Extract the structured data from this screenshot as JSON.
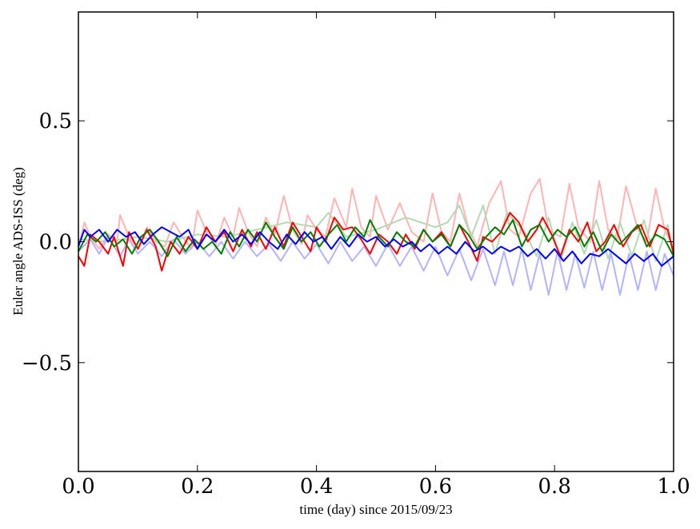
{
  "chart_data": {
    "type": "line",
    "title": "",
    "xlabel": "time (day) since 2015/09/23",
    "ylabel": "Euler angle ADS-ISS (deg)",
    "xlim": [
      0.0,
      1.0
    ],
    "ylim": [
      -0.95,
      0.95
    ],
    "grid": false,
    "legend": "none",
    "x_ticks": [
      0.0,
      0.2,
      0.4,
      0.6,
      0.8,
      1.0
    ],
    "x_tick_labels": [
      "0.0",
      "0.2",
      "0.4",
      "0.6",
      "0.8",
      "1.0"
    ],
    "y_ticks": [
      -0.5,
      0.0,
      0.5
    ],
    "y_tick_labels": [
      "−0.5",
      "0.0",
      "0.5"
    ],
    "series": [
      {
        "color": "#ffb3b3",
        "x": [
          0.0,
          0.01,
          0.02,
          0.035,
          0.05,
          0.065,
          0.07,
          0.085,
          0.1,
          0.115,
          0.13,
          0.145,
          0.16,
          0.175,
          0.19,
          0.2,
          0.215,
          0.23,
          0.245,
          0.26,
          0.27,
          0.285,
          0.3,
          0.315,
          0.33,
          0.345,
          0.36,
          0.375,
          0.385,
          0.4,
          0.415,
          0.43,
          0.45,
          0.46,
          0.475,
          0.49,
          0.5,
          0.52,
          0.54,
          0.56,
          0.58,
          0.595,
          0.61,
          0.625,
          0.64,
          0.655,
          0.67,
          0.69,
          0.71,
          0.725,
          0.74,
          0.76,
          0.775,
          0.79,
          0.81,
          0.825,
          0.84,
          0.86,
          0.875,
          0.89,
          0.905,
          0.92,
          0.94,
          0.955,
          0.97,
          0.985,
          1.0
        ],
        "values": [
          -0.02,
          0.08,
          0.02,
          -0.03,
          0.03,
          0.0,
          0.11,
          0.02,
          -0.03,
          0.06,
          0.0,
          -0.02,
          0.08,
          0.02,
          -0.03,
          0.13,
          0.04,
          -0.02,
          0.1,
          0.02,
          0.14,
          0.04,
          -0.02,
          0.1,
          0.03,
          0.19,
          0.05,
          -0.01,
          0.11,
          0.05,
          0.02,
          0.18,
          0.06,
          0.22,
          0.06,
          0.02,
          0.19,
          0.05,
          0.16,
          0.04,
          0.0,
          0.2,
          0.04,
          0.0,
          0.2,
          0.06,
          -0.02,
          0.16,
          0.25,
          0.05,
          0.02,
          0.2,
          0.26,
          0.05,
          0.02,
          0.24,
          0.06,
          0.0,
          0.25,
          0.05,
          0.01,
          0.23,
          0.05,
          0.0,
          0.22,
          0.05,
          -0.02
        ]
      },
      {
        "color": "#b3d9b3",
        "x": [
          0.0,
          0.05,
          0.1,
          0.15,
          0.2,
          0.25,
          0.3,
          0.35,
          0.4,
          0.42,
          0.45,
          0.5,
          0.55,
          0.6,
          0.62,
          0.64,
          0.66,
          0.68,
          0.7,
          0.72,
          0.75,
          0.77,
          0.79,
          0.81,
          0.83,
          0.85,
          0.87,
          0.89,
          0.91,
          0.93,
          0.95,
          0.97,
          0.99,
          1.0
        ],
        "values": [
          0.01,
          0.0,
          0.02,
          0.0,
          0.03,
          0.02,
          0.05,
          0.08,
          0.06,
          0.12,
          0.02,
          0.05,
          0.1,
          0.06,
          0.08,
          0.15,
          0.02,
          0.15,
          -0.05,
          0.12,
          0.04,
          -0.06,
          0.1,
          -0.08,
          0.08,
          -0.05,
          0.09,
          -0.07,
          0.08,
          -0.06,
          0.09,
          -0.08,
          0.07,
          -0.05
        ]
      },
      {
        "color": "#b3b3ff",
        "x": [
          0.0,
          0.02,
          0.035,
          0.05,
          0.07,
          0.085,
          0.1,
          0.12,
          0.14,
          0.16,
          0.18,
          0.2,
          0.22,
          0.24,
          0.26,
          0.28,
          0.3,
          0.32,
          0.34,
          0.36,
          0.38,
          0.4,
          0.42,
          0.44,
          0.46,
          0.48,
          0.5,
          0.52,
          0.54,
          0.56,
          0.58,
          0.6,
          0.62,
          0.64,
          0.66,
          0.68,
          0.7,
          0.715,
          0.73,
          0.745,
          0.76,
          0.775,
          0.79,
          0.805,
          0.82,
          0.835,
          0.85,
          0.865,
          0.88,
          0.895,
          0.91,
          0.925,
          0.94,
          0.955,
          0.97,
          0.985,
          1.0
        ],
        "values": [
          -0.04,
          0.01,
          -0.05,
          0.02,
          -0.06,
          0.01,
          -0.05,
          0.0,
          -0.06,
          0.01,
          -0.05,
          0.0,
          -0.06,
          0.0,
          -0.07,
          0.0,
          -0.06,
          -0.01,
          -0.08,
          0.0,
          -0.07,
          -0.01,
          -0.09,
          0.0,
          -0.08,
          -0.02,
          -0.1,
          -0.01,
          -0.1,
          -0.02,
          -0.12,
          -0.02,
          -0.14,
          -0.03,
          -0.16,
          -0.03,
          -0.18,
          -0.04,
          -0.18,
          -0.03,
          -0.2,
          -0.05,
          -0.22,
          -0.04,
          -0.2,
          -0.05,
          -0.19,
          -0.04,
          -0.2,
          -0.05,
          -0.22,
          -0.05,
          -0.2,
          -0.04,
          -0.2,
          -0.05,
          -0.14
        ]
      },
      {
        "color": "#ff0000",
        "x": [
          0.0,
          0.01,
          0.02,
          0.035,
          0.05,
          0.06,
          0.075,
          0.085,
          0.1,
          0.115,
          0.13,
          0.14,
          0.155,
          0.17,
          0.185,
          0.2,
          0.215,
          0.23,
          0.245,
          0.26,
          0.275,
          0.29,
          0.3,
          0.315,
          0.33,
          0.345,
          0.36,
          0.375,
          0.39,
          0.4,
          0.415,
          0.43,
          0.445,
          0.46,
          0.475,
          0.49,
          0.505,
          0.52,
          0.535,
          0.55,
          0.565,
          0.58,
          0.595,
          0.61,
          0.625,
          0.64,
          0.655,
          0.67,
          0.68,
          0.695,
          0.71,
          0.725,
          0.74,
          0.755,
          0.77,
          0.78,
          0.795,
          0.81,
          0.825,
          0.84,
          0.855,
          0.87,
          0.885,
          0.9,
          0.915,
          0.93,
          0.945,
          0.96,
          0.975,
          0.99,
          1.0
        ],
        "values": [
          -0.06,
          -0.1,
          0.03,
          0.0,
          -0.05,
          0.02,
          -0.1,
          0.04,
          -0.03,
          0.05,
          -0.02,
          -0.12,
          0.0,
          -0.05,
          0.02,
          -0.03,
          0.06,
          0.0,
          0.04,
          -0.04,
          0.05,
          -0.02,
          0.04,
          -0.03,
          0.06,
          -0.02,
          0.08,
          0.02,
          -0.04,
          0.06,
          0.0,
          0.1,
          0.05,
          0.06,
          0.01,
          -0.05,
          0.03,
          0.0,
          -0.05,
          0.03,
          -0.03,
          0.05,
          0.0,
          0.04,
          -0.02,
          0.07,
          0.0,
          -0.08,
          0.02,
          0.0,
          0.04,
          0.12,
          0.08,
          0.0,
          0.05,
          0.1,
          0.03,
          -0.06,
          0.05,
          0.0,
          0.08,
          -0.04,
          0.0,
          0.07,
          -0.02,
          0.04,
          0.07,
          -0.02,
          0.07,
          0.05,
          -0.05
        ]
      },
      {
        "color": "#008000",
        "x": [
          0.0,
          0.015,
          0.03,
          0.045,
          0.06,
          0.075,
          0.09,
          0.105,
          0.12,
          0.135,
          0.15,
          0.165,
          0.18,
          0.195,
          0.21,
          0.225,
          0.24,
          0.255,
          0.27,
          0.285,
          0.3,
          0.315,
          0.33,
          0.345,
          0.36,
          0.375,
          0.39,
          0.405,
          0.42,
          0.435,
          0.45,
          0.465,
          0.48,
          0.49,
          0.505,
          0.52,
          0.535,
          0.55,
          0.565,
          0.58,
          0.595,
          0.61,
          0.625,
          0.64,
          0.655,
          0.67,
          0.685,
          0.7,
          0.715,
          0.73,
          0.745,
          0.76,
          0.775,
          0.79,
          0.805,
          0.82,
          0.835,
          0.85,
          0.865,
          0.88,
          0.895,
          0.91,
          0.925,
          0.94,
          0.955,
          0.97,
          0.985,
          1.0
        ],
        "values": [
          -0.04,
          0.03,
          0.0,
          0.04,
          -0.02,
          0.01,
          -0.05,
          0.02,
          0.05,
          0.0,
          -0.06,
          0.02,
          -0.04,
          0.01,
          -0.03,
          0.0,
          -0.05,
          0.04,
          -0.02,
          0.05,
          0.0,
          0.08,
          0.02,
          -0.03,
          0.06,
          0.0,
          0.04,
          -0.02,
          0.03,
          0.07,
          0.0,
          0.06,
          0.02,
          0.09,
          0.02,
          -0.02,
          0.04,
          0.0,
          -0.02,
          0.05,
          0.0,
          0.03,
          -0.02,
          0.07,
          0.03,
          -0.03,
          0.02,
          0.06,
          0.03,
          0.09,
          -0.02,
          0.05,
          0.07,
          0.0,
          0.05,
          0.02,
          0.06,
          -0.02,
          0.04,
          -0.04,
          0.03,
          -0.01,
          0.03,
          0.07,
          -0.02,
          0.03,
          0.01,
          -0.06
        ]
      },
      {
        "color": "#0000ff",
        "x": [
          0.0,
          0.01,
          0.02,
          0.035,
          0.05,
          0.065,
          0.08,
          0.095,
          0.11,
          0.125,
          0.14,
          0.155,
          0.17,
          0.185,
          0.2,
          0.215,
          0.23,
          0.245,
          0.26,
          0.275,
          0.29,
          0.305,
          0.32,
          0.335,
          0.35,
          0.365,
          0.38,
          0.395,
          0.41,
          0.425,
          0.44,
          0.455,
          0.47,
          0.485,
          0.5,
          0.515,
          0.53,
          0.545,
          0.56,
          0.575,
          0.59,
          0.605,
          0.62,
          0.635,
          0.65,
          0.665,
          0.68,
          0.695,
          0.71,
          0.725,
          0.74,
          0.755,
          0.77,
          0.785,
          0.8,
          0.815,
          0.83,
          0.845,
          0.86,
          0.875,
          0.89,
          0.905,
          0.92,
          0.935,
          0.95,
          0.965,
          0.98,
          1.0
        ],
        "values": [
          -0.02,
          0.05,
          0.02,
          0.05,
          0.0,
          0.05,
          0.02,
          0.04,
          -0.01,
          0.03,
          0.06,
          0.04,
          0.02,
          0.05,
          -0.03,
          0.03,
          0.0,
          0.05,
          0.0,
          0.03,
          -0.01,
          0.04,
          0.0,
          -0.03,
          0.03,
          -0.01,
          0.04,
          0.0,
          0.02,
          -0.03,
          0.02,
          -0.02,
          0.03,
          0.0,
          0.02,
          -0.02,
          0.01,
          -0.02,
          0.0,
          -0.04,
          -0.01,
          -0.05,
          -0.02,
          -0.05,
          0.0,
          -0.04,
          -0.02,
          -0.05,
          -0.02,
          -0.04,
          -0.02,
          -0.06,
          -0.03,
          -0.07,
          -0.03,
          -0.08,
          -0.04,
          -0.09,
          -0.05,
          -0.06,
          -0.03,
          -0.06,
          -0.09,
          -0.05,
          -0.08,
          -0.05,
          -0.1,
          -0.06
        ]
      }
    ]
  }
}
